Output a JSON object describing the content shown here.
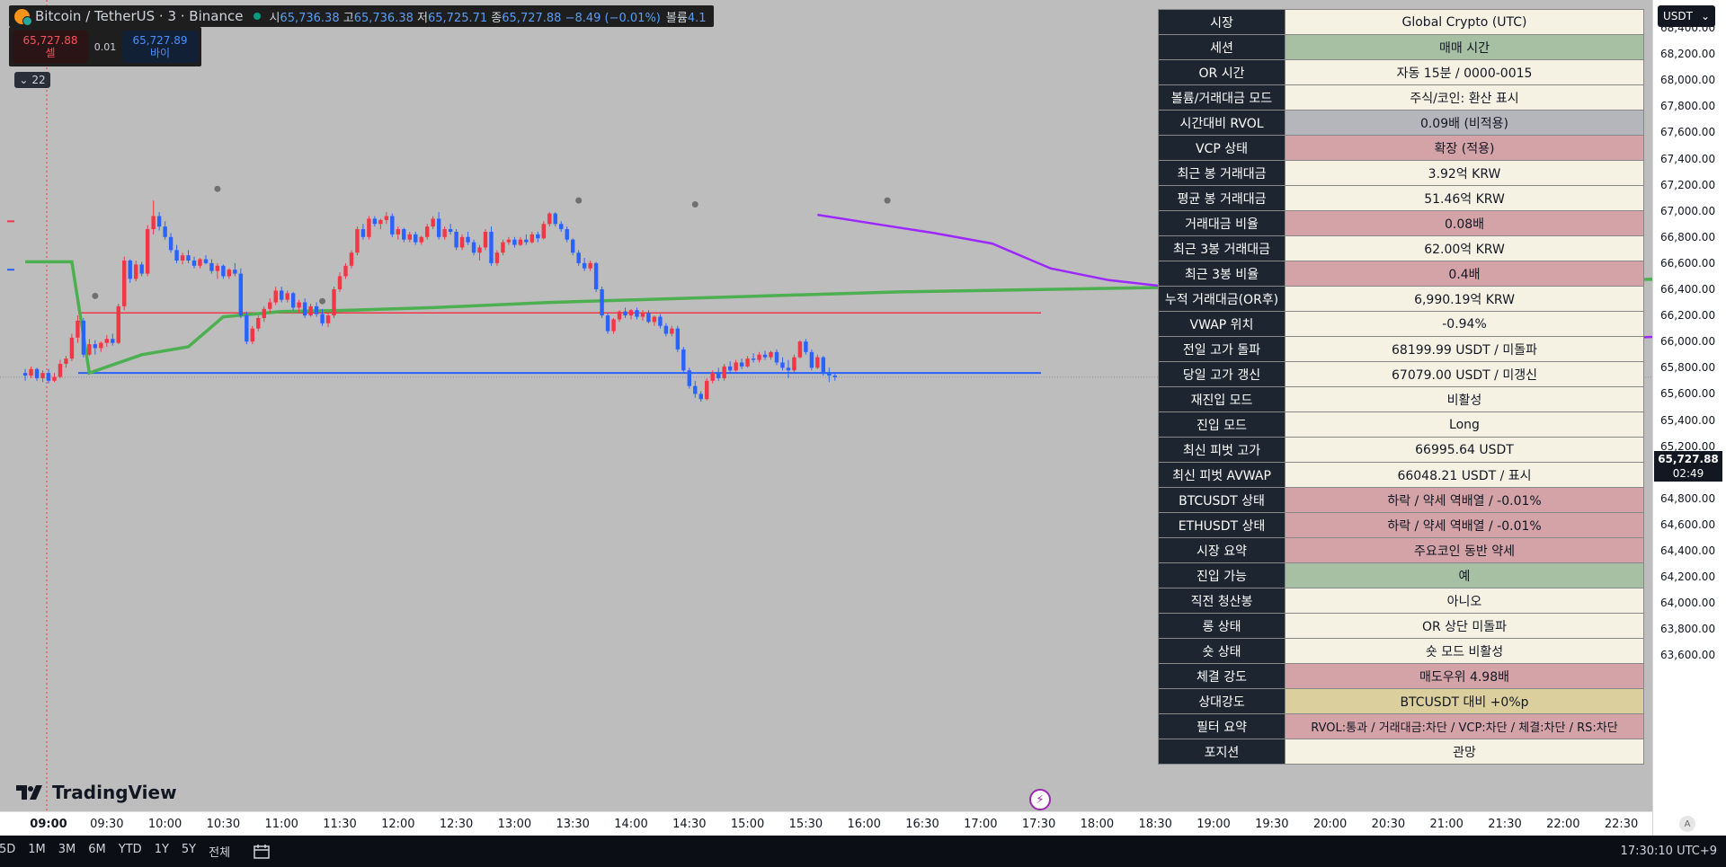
{
  "legend": {
    "symbol_title": "Bitcoin / TetherUS · 3 · Binance",
    "o_label": "시",
    "o_val": "65,736.38",
    "h_label": "고",
    "h_val": "65,736.38",
    "l_label": "저",
    "l_val": "65,725.71",
    "c_label": "종",
    "c_val": "65,727.88",
    "change": "−8.49 (−0.01%)",
    "vol_label": "볼륨",
    "vol_val": "4.1"
  },
  "trade": {
    "sell_price": "65,727.88",
    "sell_label": "셀",
    "spread": "0.01",
    "buy_price": "65,727.89",
    "buy_label": "바이"
  },
  "indicator_toggle": "22",
  "currency_button": "USDT",
  "last_price": "65,727.88",
  "countdown": "02:49",
  "price_axis": [
    "68,400.00",
    "68,200.00",
    "68,000.00",
    "67,800.00",
    "67,600.00",
    "67,400.00",
    "67,200.00",
    "67,000.00",
    "66,800.00",
    "66,600.00",
    "66,400.00",
    "66,200.00",
    "66,000.00",
    "65,800.00",
    "65,600.00",
    "65,400.00",
    "65,200.00",
    "65,000.00",
    "64,800.00",
    "64,600.00",
    "64,400.00",
    "64,200.00",
    "64,000.00",
    "63,800.00",
    "63,600.00"
  ],
  "time_axis": [
    "09:00",
    "09:30",
    "10:00",
    "10:30",
    "11:00",
    "11:30",
    "12:00",
    "12:30",
    "13:00",
    "13:30",
    "14:00",
    "14:30",
    "15:00",
    "15:30",
    "16:00",
    "16:30",
    "17:00",
    "17:30",
    "18:00",
    "18:30",
    "19:00",
    "19:30",
    "20:00",
    "20:30",
    "21:00",
    "21:30",
    "22:00",
    "22:30"
  ],
  "info_table": [
    {
      "k": "시장",
      "v": "Global Crypto (UTC)",
      "bg": "cream"
    },
    {
      "k": "세션",
      "v": "매매 시간",
      "bg": "green"
    },
    {
      "k": "OR 시간",
      "v": "자동 15분 / 0000-0015",
      "bg": "cream"
    },
    {
      "k": "볼륨/거래대금 모드",
      "v": "주식/코인: 환산 표시",
      "bg": "cream"
    },
    {
      "k": "시간대비 RVOL",
      "v": "0.09배 (비적용)",
      "bg": "gray"
    },
    {
      "k": "VCP 상태",
      "v": "확장 (적용)",
      "bg": "red"
    },
    {
      "k": "최근 봉 거래대금",
      "v": "3.92억 KRW",
      "bg": "cream"
    },
    {
      "k": "평균 봉 거래대금",
      "v": "51.46억 KRW",
      "bg": "cream"
    },
    {
      "k": "거래대금 비율",
      "v": "0.08배",
      "bg": "red"
    },
    {
      "k": "최근 3봉 거래대금",
      "v": "62.00억 KRW",
      "bg": "cream"
    },
    {
      "k": "최근 3봉 비율",
      "v": "0.4배",
      "bg": "red"
    },
    {
      "k": "누적 거래대금(OR후)",
      "v": "6,990.19억 KRW",
      "bg": "cream"
    },
    {
      "k": "VWAP 위치",
      "v": "-0.94%",
      "bg": "cream"
    },
    {
      "k": "전일 고가 돌파",
      "v": "68199.99 USDT / 미돌파",
      "bg": "cream"
    },
    {
      "k": "당일 고가 갱신",
      "v": "67079.00 USDT / 미갱신",
      "bg": "cream"
    },
    {
      "k": "재진입 모드",
      "v": "비활성",
      "bg": "cream"
    },
    {
      "k": "진입 모드",
      "v": "Long",
      "bg": "cream"
    },
    {
      "k": "최신 피벗 고가",
      "v": "66995.64 USDT",
      "bg": "cream"
    },
    {
      "k": "최신 피벗 AVWAP",
      "v": "66048.21 USDT / 표시",
      "bg": "cream"
    },
    {
      "k": "BTCUSDT 상태",
      "v": "하락 / 약세 역배열 / -0.01%",
      "bg": "red"
    },
    {
      "k": "ETHUSDT 상태",
      "v": "하락 / 약세 역배열 / -0.01%",
      "bg": "red"
    },
    {
      "k": "시장 요약",
      "v": "주요코인 동반 약세",
      "bg": "red"
    },
    {
      "k": "진입 가능",
      "v": "예",
      "bg": "green"
    },
    {
      "k": "직전 청산봉",
      "v": "아니오",
      "bg": "cream"
    },
    {
      "k": "롱 상태",
      "v": "OR 상단 미돌파",
      "bg": "cream"
    },
    {
      "k": "숏 상태",
      "v": "숏 모드 비활성",
      "bg": "cream"
    },
    {
      "k": "체결 강도",
      "v": "매도우위 4.98배",
      "bg": "red"
    },
    {
      "k": "상대강도",
      "v": "BTCUSDT 대비 +0%p",
      "bg": "gold"
    },
    {
      "k": "필터 요약",
      "v": "RVOL:통과 / 거래대금:차단 / VCP:차단 / 체결:차단 / RS:차단",
      "bg": "red"
    },
    {
      "k": "포지션",
      "v": "관망",
      "bg": "cream"
    }
  ],
  "ranges": [
    "5D",
    "1M",
    "3M",
    "6M",
    "YTD",
    "1Y",
    "5Y",
    "전체"
  ],
  "clock": "17:30:10 UTC+9",
  "logo_text": "TradingView",
  "colors": {
    "up": "#f23645",
    "down": "#2962ff",
    "vwap": "#4caf50",
    "avwap": "#9c27ff",
    "or_high": "#f23645",
    "or_low": "#2962ff"
  },
  "chart_data": {
    "type": "candlestick",
    "interval_minutes": 3,
    "start_time": "08:48",
    "ylim": [
      63500,
      68500
    ],
    "candles": [
      [
        65760,
        65790,
        65700,
        65740
      ],
      [
        65740,
        65810,
        65720,
        65790
      ],
      [
        65790,
        65800,
        65700,
        65720
      ],
      [
        65720,
        65780,
        65690,
        65760
      ],
      [
        65760,
        65790,
        65680,
        65700
      ],
      [
        65700,
        65760,
        65690,
        65730
      ],
      [
        65730,
        65860,
        65720,
        65830
      ],
      [
        65830,
        65890,
        65800,
        65870
      ],
      [
        65870,
        66060,
        65850,
        66030
      ],
      [
        66030,
        66200,
        65990,
        66160
      ],
      [
        66160,
        66180,
        65880,
        65900
      ],
      [
        65900,
        66020,
        65890,
        65980
      ],
      [
        65980,
        66010,
        65900,
        65950
      ],
      [
        65950,
        66000,
        65920,
        65990
      ],
      [
        65990,
        66050,
        65960,
        66020
      ],
      [
        66020,
        66060,
        65970,
        65990
      ],
      [
        65990,
        66290,
        65980,
        66270
      ],
      [
        66270,
        66650,
        66240,
        66620
      ],
      [
        66620,
        66630,
        66450,
        66480
      ],
      [
        66480,
        66620,
        66460,
        66590
      ],
      [
        66590,
        66610,
        66500,
        66520
      ],
      [
        66520,
        66890,
        66500,
        66860
      ],
      [
        66860,
        67079,
        66820,
        66960
      ],
      [
        66960,
        66990,
        66850,
        66880
      ],
      [
        66880,
        66920,
        66780,
        66800
      ],
      [
        66800,
        66830,
        66680,
        66700
      ],
      [
        66700,
        66740,
        66600,
        66620
      ],
      [
        66620,
        66680,
        66590,
        66660
      ],
      [
        66660,
        66700,
        66600,
        66620
      ],
      [
        66620,
        66650,
        66560,
        66580
      ],
      [
        66580,
        66640,
        66560,
        66630
      ],
      [
        66630,
        66660,
        66590,
        66600
      ],
      [
        66600,
        66630,
        66520,
        66540
      ],
      [
        66540,
        66600,
        66480,
        66580
      ],
      [
        66580,
        66590,
        66480,
        66500
      ],
      [
        66500,
        66560,
        66480,
        66550
      ],
      [
        66550,
        66600,
        66500,
        66520
      ],
      [
        66520,
        66560,
        66180,
        66200
      ],
      [
        66200,
        66230,
        65980,
        66000
      ],
      [
        66000,
        66120,
        65980,
        66100
      ],
      [
        66100,
        66200,
        66080,
        66180
      ],
      [
        66180,
        66270,
        66150,
        66250
      ],
      [
        66250,
        66330,
        66220,
        66300
      ],
      [
        66300,
        66420,
        66280,
        66390
      ],
      [
        66390,
        66420,
        66300,
        66320
      ],
      [
        66320,
        66390,
        66300,
        66370
      ],
      [
        66370,
        66380,
        66240,
        66260
      ],
      [
        66260,
        66320,
        66220,
        66300
      ],
      [
        66300,
        66330,
        66180,
        66200
      ],
      [
        66200,
        66290,
        66190,
        66270
      ],
      [
        66270,
        66300,
        66190,
        66210
      ],
      [
        66210,
        66250,
        66120,
        66140
      ],
      [
        66140,
        66220,
        66110,
        66200
      ],
      [
        66200,
        66420,
        66180,
        66400
      ],
      [
        66400,
        66530,
        66380,
        66500
      ],
      [
        66500,
        66600,
        66480,
        66580
      ],
      [
        66580,
        66700,
        66560,
        66680
      ],
      [
        66680,
        66880,
        66660,
        66860
      ],
      [
        66860,
        66900,
        66780,
        66800
      ],
      [
        66800,
        66960,
        66780,
        66940
      ],
      [
        66940,
        66960,
        66880,
        66900
      ],
      [
        66900,
        66940,
        66860,
        66930
      ],
      [
        66930,
        66990,
        66900,
        66960
      ],
      [
        66960,
        66980,
        66800,
        66820
      ],
      [
        66820,
        66880,
        66780,
        66860
      ],
      [
        66860,
        66870,
        66760,
        66780
      ],
      [
        66780,
        66840,
        66760,
        66820
      ],
      [
        66820,
        66840,
        66740,
        66760
      ],
      [
        66760,
        66810,
        66740,
        66800
      ],
      [
        66800,
        66900,
        66780,
        66880
      ],
      [
        66880,
        66960,
        66860,
        66940
      ],
      [
        66940,
        66990,
        66780,
        66800
      ],
      [
        66800,
        66880,
        66780,
        66860
      ],
      [
        66860,
        66900,
        66820,
        66840
      ],
      [
        66840,
        66860,
        66700,
        66720
      ],
      [
        66720,
        66820,
        66700,
        66800
      ],
      [
        66800,
        66840,
        66740,
        66760
      ],
      [
        66760,
        66780,
        66660,
        66680
      ],
      [
        66680,
        66740,
        66620,
        66720
      ],
      [
        66720,
        66860,
        66700,
        66840
      ],
      [
        66840,
        66880,
        66580,
        66600
      ],
      [
        66600,
        66700,
        66580,
        66680
      ],
      [
        66680,
        66780,
        66660,
        66760
      ],
      [
        66760,
        66800,
        66740,
        66780
      ],
      [
        66780,
        66800,
        66720,
        66740
      ],
      [
        66740,
        66800,
        66730,
        66780
      ],
      [
        66780,
        66820,
        66740,
        66760
      ],
      [
        66760,
        66840,
        66750,
        66820
      ],
      [
        66820,
        66840,
        66760,
        66790
      ],
      [
        66790,
        66920,
        66780,
        66900
      ],
      [
        66900,
        66990,
        66880,
        66980
      ],
      [
        66980,
        66990,
        66880,
        66900
      ],
      [
        66900,
        66920,
        66840,
        66860
      ],
      [
        66860,
        66880,
        66760,
        66780
      ],
      [
        66780,
        66790,
        66660,
        66680
      ],
      [
        66680,
        66700,
        66580,
        66600
      ],
      [
        66600,
        66640,
        66540,
        66560
      ],
      [
        66560,
        66620,
        66540,
        66600
      ],
      [
        66600,
        66610,
        66380,
        66400
      ],
      [
        66400,
        66420,
        66180,
        66200
      ],
      [
        66200,
        66220,
        66060,
        66080
      ],
      [
        66080,
        66180,
        66060,
        66170
      ],
      [
        66170,
        66240,
        66150,
        66230
      ],
      [
        66230,
        66260,
        66180,
        66200
      ],
      [
        66200,
        66250,
        66170,
        66240
      ],
      [
        66240,
        66260,
        66170,
        66190
      ],
      [
        66190,
        66240,
        66160,
        66220
      ],
      [
        66220,
        66240,
        66140,
        66150
      ],
      [
        66150,
        66200,
        66120,
        66190
      ],
      [
        66190,
        66210,
        66100,
        66120
      ],
      [
        66120,
        66140,
        66040,
        66060
      ],
      [
        66060,
        66120,
        66040,
        66100
      ],
      [
        66100,
        66120,
        65920,
        65940
      ],
      [
        65940,
        65960,
        65760,
        65780
      ],
      [
        65780,
        65800,
        65640,
        65660
      ],
      [
        65660,
        65700,
        65570,
        65600
      ],
      [
        65600,
        65620,
        65540,
        65560
      ],
      [
        65560,
        65720,
        65550,
        65700
      ],
      [
        65700,
        65780,
        65680,
        65760
      ],
      [
        65760,
        65800,
        65700,
        65720
      ],
      [
        65720,
        65830,
        65700,
        65810
      ],
      [
        65810,
        65850,
        65760,
        65780
      ],
      [
        65780,
        65860,
        65770,
        65840
      ],
      [
        65840,
        65870,
        65790,
        65810
      ],
      [
        65810,
        65890,
        65800,
        65870
      ],
      [
        65870,
        65910,
        65840,
        65860
      ],
      [
        65860,
        65920,
        65840,
        65900
      ],
      [
        65900,
        65930,
        65860,
        65880
      ],
      [
        65880,
        65930,
        65860,
        65920
      ],
      [
        65920,
        65940,
        65820,
        65840
      ],
      [
        65840,
        65880,
        65780,
        65800
      ],
      [
        65800,
        65860,
        65720,
        65780
      ],
      [
        65780,
        65900,
        65760,
        65880
      ],
      [
        65880,
        66010,
        65870,
        66000
      ],
      [
        66000,
        66020,
        65900,
        65920
      ],
      [
        65920,
        65940,
        65780,
        65800
      ],
      [
        65800,
        65900,
        65790,
        65880
      ],
      [
        65880,
        65890,
        65740,
        65760
      ],
      [
        65760,
        65800,
        65690,
        65740
      ],
      [
        65740,
        65760,
        65700,
        65728
      ]
    ],
    "vwap": [
      [
        0,
        66610
      ],
      [
        8,
        66610
      ],
      [
        11,
        65760
      ],
      [
        20,
        65900
      ],
      [
        28,
        65960
      ],
      [
        34,
        66190
      ],
      [
        44,
        66230
      ],
      [
        56,
        66240
      ],
      [
        70,
        66260
      ],
      [
        90,
        66300
      ],
      [
        120,
        66340
      ],
      [
        150,
        66380
      ],
      [
        190,
        66410
      ],
      [
        230,
        66440
      ],
      [
        270,
        66470
      ],
      [
        300,
        66490
      ],
      [
        340,
        66510
      ],
      [
        360,
        66480
      ],
      [
        380,
        66440
      ],
      [
        400,
        66390
      ],
      [
        420,
        66360
      ],
      [
        440,
        66340
      ]
    ],
    "avwap": [
      [
        0,
        66970
      ],
      [
        10,
        66900
      ],
      [
        20,
        66830
      ],
      [
        30,
        66750
      ],
      [
        40,
        66560
      ],
      [
        50,
        66470
      ],
      [
        60,
        66420
      ],
      [
        70,
        66330
      ],
      [
        80,
        66230
      ],
      [
        90,
        66120
      ],
      [
        100,
        66080
      ],
      [
        110,
        66060
      ],
      [
        125,
        66040
      ],
      [
        140,
        66030
      ],
      [
        150,
        66048
      ]
    ],
    "or_high": 66220,
    "or_low": 65760,
    "pivot_markers": [
      [
        21,
        67079
      ],
      [
        39,
        66220
      ],
      [
        83,
        66990
      ],
      [
        103,
        66960
      ],
      [
        136,
        66990
      ],
      [
        0,
        66260
      ]
    ]
  }
}
